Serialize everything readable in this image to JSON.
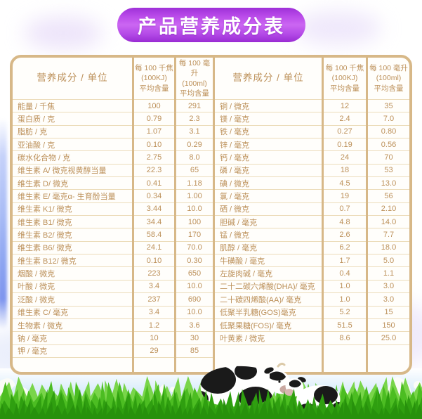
{
  "title": "产品营养成分表",
  "colors": {
    "banner_purple": "#b44ae6",
    "table_border_tan": "#d7b888",
    "row_line_tan": "#ecdcba",
    "text_brown": "#bc9059",
    "grass_green": "#2f9f10",
    "sky_blue": "#cbe7fb"
  },
  "table": {
    "headers": {
      "name": "营养成分 / 单位",
      "per_100kj": "每 100 千焦\n(100KJ)\n平均含量",
      "per_100ml": "每 100 毫升\n(100ml)\n平均含量"
    },
    "left_rows": [
      {
        "name": "能量 / 千焦",
        "per_100kj": "100",
        "per_100ml": "291"
      },
      {
        "name": "蛋白质 / 克",
        "per_100kj": "0.79",
        "per_100ml": "2.3"
      },
      {
        "name": "脂肪 / 克",
        "per_100kj": "1.07",
        "per_100ml": "3.1"
      },
      {
        "name": "亚油酸 / 克",
        "per_100kj": "0.10",
        "per_100ml": "0.29"
      },
      {
        "name": "碳水化合物 / 克",
        "per_100kj": "2.75",
        "per_100ml": "8.0"
      },
      {
        "name": "维生素 A/ 微克视黄醇当量",
        "per_100kj": "22.3",
        "per_100ml": "65"
      },
      {
        "name": "维生素 D/ 微克",
        "per_100kj": "0.41",
        "per_100ml": "1.18"
      },
      {
        "name": "维生素 E/ 毫克α- 生育酚当量",
        "per_100kj": "0.34",
        "per_100ml": "1.00"
      },
      {
        "name": "维生素 K1/ 微克",
        "per_100kj": "3.44",
        "per_100ml": "10.0"
      },
      {
        "name": "维生素 B1/ 微克",
        "per_100kj": "34.4",
        "per_100ml": "100"
      },
      {
        "name": "维生素 B2/ 微克",
        "per_100kj": "58.4",
        "per_100ml": "170"
      },
      {
        "name": "维生素 B6/ 微克",
        "per_100kj": "24.1",
        "per_100ml": "70.0"
      },
      {
        "name": "维生素 B12/ 微克",
        "per_100kj": "0.10",
        "per_100ml": "0.30"
      },
      {
        "name": "烟酸 / 微克",
        "per_100kj": "223",
        "per_100ml": "650"
      },
      {
        "name": "叶酸 / 微克",
        "per_100kj": "3.4",
        "per_100ml": "10.0"
      },
      {
        "name": "泛酸 / 微克",
        "per_100kj": "237",
        "per_100ml": "690"
      },
      {
        "name": "维生素 C/ 毫克",
        "per_100kj": "3.4",
        "per_100ml": "10.0"
      },
      {
        "name": "生物素 / 微克",
        "per_100kj": "1.2",
        "per_100ml": "3.6"
      },
      {
        "name": "钠 / 毫克",
        "per_100kj": "10",
        "per_100ml": "30"
      },
      {
        "name": "钾 / 毫克",
        "per_100kj": "29",
        "per_100ml": "85"
      }
    ],
    "right_rows": [
      {
        "name": "铜 / 微克",
        "per_100kj": "12",
        "per_100ml": "35"
      },
      {
        "name": "镁 / 毫克",
        "per_100kj": "2.4",
        "per_100ml": "7.0"
      },
      {
        "name": "铁 / 毫克",
        "per_100kj": "0.27",
        "per_100ml": "0.80"
      },
      {
        "name": "锌 / 毫克",
        "per_100kj": "0.19",
        "per_100ml": "0.56"
      },
      {
        "name": "钙 / 毫克",
        "per_100kj": "24",
        "per_100ml": "70"
      },
      {
        "name": "磷 / 毫克",
        "per_100kj": "18",
        "per_100ml": "53"
      },
      {
        "name": "碘 / 微克",
        "per_100kj": "4.5",
        "per_100ml": "13.0"
      },
      {
        "name": "氯 / 毫克",
        "per_100kj": "19",
        "per_100ml": "56"
      },
      {
        "name": "硒 / 微克",
        "per_100kj": "0.7",
        "per_100ml": "2.10"
      },
      {
        "name": "胆碱 / 毫克",
        "per_100kj": "4.8",
        "per_100ml": "14.0"
      },
      {
        "name": "锰 / 微克",
        "per_100kj": "2.6",
        "per_100ml": "7.7"
      },
      {
        "name": "肌醇 / 毫克",
        "per_100kj": "6.2",
        "per_100ml": "18.0"
      },
      {
        "name": "牛磺酸 / 毫克",
        "per_100kj": "1.7",
        "per_100ml": "5.0"
      },
      {
        "name": "左旋肉碱 / 毫克",
        "per_100kj": "0.4",
        "per_100ml": "1.1"
      },
      {
        "name": "二十二碳六烯酸(DHA)/ 毫克",
        "per_100kj": "1.0",
        "per_100ml": "3.0"
      },
      {
        "name": "二十碳四烯酸(AA)/ 毫克",
        "per_100kj": "1.0",
        "per_100ml": "3.0"
      },
      {
        "name": "低聚半乳糖(GOS)毫克",
        "per_100kj": "5.2",
        "per_100ml": "15"
      },
      {
        "name": "低聚果糖(FOS)/ 毫克",
        "per_100kj": "51.5",
        "per_100ml": "150"
      },
      {
        "name": "叶黄素 / 微克",
        "per_100kj": "8.6",
        "per_100ml": "25.0"
      }
    ]
  },
  "scene": {
    "decorations": [
      "milk-splash",
      "holstein-cow",
      "holstein-calf",
      "grass-field",
      "sky-band",
      "lavender-clouds"
    ]
  }
}
